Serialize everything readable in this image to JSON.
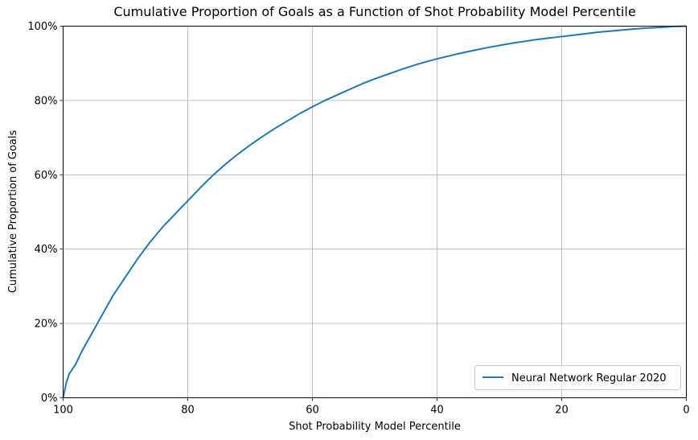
{
  "chart_data": {
    "type": "line",
    "title": "Cumulative Proportion of Goals as a Function of Shot Probability Model Percentile",
    "xlabel": "Shot Probability Model Percentile",
    "ylabel": "Cumulative Proportion of Goals",
    "xlim": [
      100,
      0
    ],
    "ylim": [
      0,
      1
    ],
    "x_ticks": [
      100,
      80,
      60,
      40,
      20,
      0
    ],
    "x_tick_labels": [
      "100",
      "80",
      "60",
      "40",
      "20",
      "0"
    ],
    "y_ticks": [
      0,
      0.2,
      0.4,
      0.6,
      0.8,
      1.0
    ],
    "y_tick_labels": [
      "0%",
      "20%",
      "40%",
      "60%",
      "80%",
      "100%"
    ],
    "grid": true,
    "legend_position": "bottom-right",
    "colors": {
      "series": "#1f77b4",
      "grid": "#b0b0b0",
      "frame": "#000000"
    },
    "series": [
      {
        "name": "Neural Network Regular 2020",
        "x": [
          100,
          99.5,
          99,
          98,
          97,
          96,
          95,
          94,
          93,
          92,
          91,
          90,
          88,
          86,
          84,
          82,
          80,
          78,
          76,
          74,
          72,
          70,
          68,
          66,
          64,
          62,
          60,
          58,
          56,
          54,
          52,
          50,
          48,
          46,
          44,
          42,
          40,
          38,
          36,
          34,
          32,
          30,
          28,
          26,
          24,
          22,
          20,
          18,
          16,
          14,
          12,
          10,
          8,
          6,
          4,
          2,
          0
        ],
        "y": [
          0.0,
          0.04,
          0.065,
          0.09,
          0.125,
          0.155,
          0.185,
          0.215,
          0.245,
          0.275,
          0.3,
          0.325,
          0.375,
          0.42,
          0.46,
          0.495,
          0.53,
          0.565,
          0.598,
          0.628,
          0.655,
          0.68,
          0.703,
          0.725,
          0.745,
          0.765,
          0.783,
          0.8,
          0.815,
          0.83,
          0.845,
          0.858,
          0.87,
          0.882,
          0.893,
          0.903,
          0.912,
          0.92,
          0.928,
          0.935,
          0.942,
          0.948,
          0.954,
          0.959,
          0.964,
          0.968,
          0.972,
          0.976,
          0.98,
          0.984,
          0.987,
          0.99,
          0.993,
          0.995,
          0.997,
          0.999,
          1.0
        ]
      }
    ]
  }
}
